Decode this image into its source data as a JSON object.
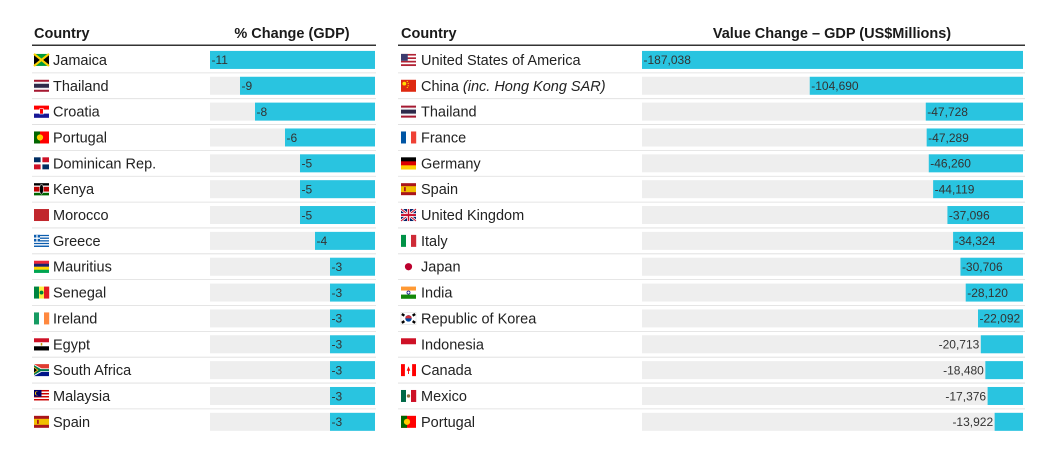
{
  "colors": {
    "bar": "#29c4e0",
    "track": "#eeeeee",
    "divider": "#dddddd",
    "header_rule": "#333333"
  },
  "chart_data": [
    {
      "type": "bar",
      "orientation": "horizontal",
      "title": "% Change (GDP)",
      "category_header": "Country",
      "value_header": "% Change (GDP)",
      "xlim": [
        -11,
        0
      ],
      "rows": [
        {
          "country": "Jamaica",
          "flag": "jamaica-flag-icon",
          "value": -11,
          "label": "-11"
        },
        {
          "country": "Thailand",
          "flag": "thailand-flag-icon",
          "value": -9,
          "label": "-9"
        },
        {
          "country": "Croatia",
          "flag": "croatia-flag-icon",
          "value": -8,
          "label": "-8"
        },
        {
          "country": "Portugal",
          "flag": "portugal-flag-icon",
          "value": -6,
          "label": "-6"
        },
        {
          "country": "Dominican Rep.",
          "flag": "dominican-republic-flag-icon",
          "value": -5,
          "label": "-5"
        },
        {
          "country": "Kenya",
          "flag": "kenya-flag-icon",
          "value": -5,
          "label": "-5"
        },
        {
          "country": "Morocco",
          "flag": "morocco-flag-icon",
          "value": -5,
          "label": "-5"
        },
        {
          "country": "Greece",
          "flag": "greece-flag-icon",
          "value": -4,
          "label": "-4"
        },
        {
          "country": "Mauritius",
          "flag": "mauritius-flag-icon",
          "value": -3,
          "label": "-3"
        },
        {
          "country": "Senegal",
          "flag": "senegal-flag-icon",
          "value": -3,
          "label": "-3"
        },
        {
          "country": "Ireland",
          "flag": "ireland-flag-icon",
          "value": -3,
          "label": "-3"
        },
        {
          "country": "Egypt",
          "flag": "egypt-flag-icon",
          "value": -3,
          "label": "-3"
        },
        {
          "country": "South Africa",
          "flag": "south-africa-flag-icon",
          "value": -3,
          "label": "-3"
        },
        {
          "country": "Malaysia",
          "flag": "malaysia-flag-icon",
          "value": -3,
          "label": "-3"
        },
        {
          "country": "Spain",
          "flag": "spain-flag-icon",
          "value": -3,
          "label": "-3"
        }
      ]
    },
    {
      "type": "bar",
      "orientation": "horizontal",
      "title": "Value Change – GDP (US$Millions)",
      "category_header": "Country",
      "value_header": "Value Change – GDP (US$Millions)",
      "xlim": [
        -187038,
        0
      ],
      "rows": [
        {
          "country": "United States of America",
          "flag": "usa-flag-icon",
          "value": -187038,
          "label": "-187,038"
        },
        {
          "country": "China",
          "country_suffix": "(inc. Hong Kong SAR)",
          "flag": "china-flag-icon",
          "value": -104690,
          "label": "-104,690"
        },
        {
          "country": "Thailand",
          "flag": "thailand-flag-icon",
          "value": -47728,
          "label": "-47,728"
        },
        {
          "country": "France",
          "flag": "france-flag-icon",
          "value": -47289,
          "label": "-47,289"
        },
        {
          "country": "Germany",
          "flag": "germany-flag-icon",
          "value": -46260,
          "label": "-46,260"
        },
        {
          "country": "Spain",
          "flag": "spain-flag-icon",
          "value": -44119,
          "label": "-44,119"
        },
        {
          "country": "United Kingdom",
          "flag": "uk-flag-icon",
          "value": -37096,
          "label": "-37,096"
        },
        {
          "country": "Italy",
          "flag": "italy-flag-icon",
          "value": -34324,
          "label": "-34,324"
        },
        {
          "country": "Japan",
          "flag": "japan-flag-icon",
          "value": -30706,
          "label": "-30,706"
        },
        {
          "country": "India",
          "flag": "india-flag-icon",
          "value": -28120,
          "label": "-28,120"
        },
        {
          "country": "Republic of Korea",
          "flag": "korea-flag-icon",
          "value": -22092,
          "label": "-22,092"
        },
        {
          "country": "Indonesia",
          "flag": "indonesia-flag-icon",
          "value": -20713,
          "label": "-20,713"
        },
        {
          "country": "Canada",
          "flag": "canada-flag-icon",
          "value": -18480,
          "label": "-18,480"
        },
        {
          "country": "Mexico",
          "flag": "mexico-flag-icon",
          "value": -17376,
          "label": "-17,376"
        },
        {
          "country": "Portugal",
          "flag": "portugal-flag-icon",
          "value": -13922,
          "label": "-13,922"
        }
      ]
    }
  ]
}
